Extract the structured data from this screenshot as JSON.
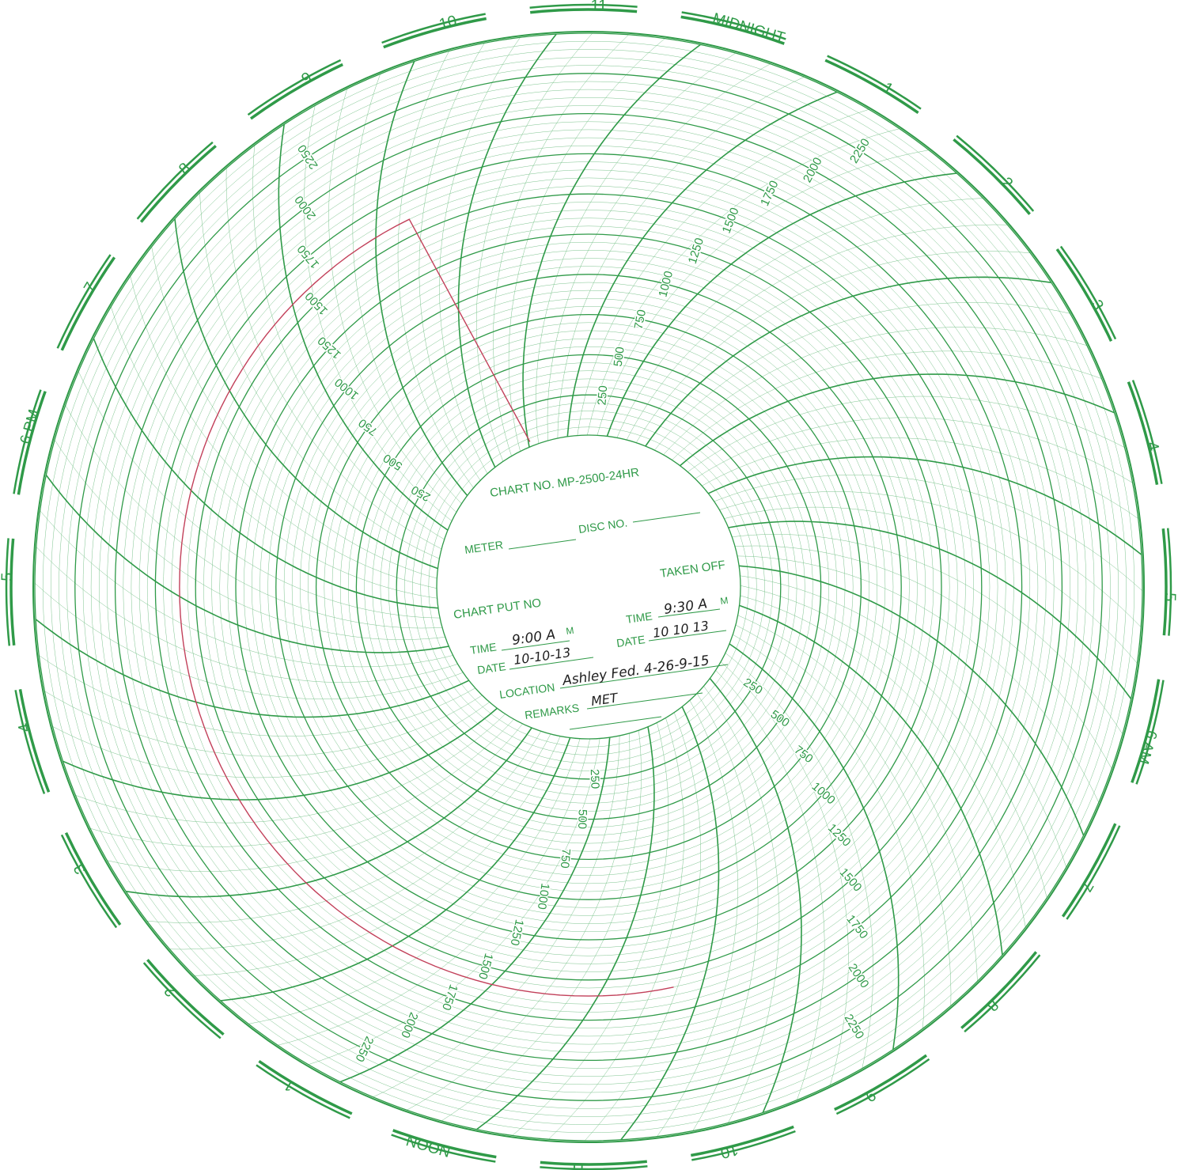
{
  "chart_data": {
    "type": "circular-recorder",
    "chart_no": "CHART NO. MP-2500-24HR",
    "colors": {
      "grid": "#2f9a48",
      "grid_light": "#7cc48d",
      "trace": "#c2405a",
      "ink": "#1f1f1f"
    },
    "hour_labels": [
      "MIDNIGHT",
      "1",
      "2",
      "3",
      "4",
      "5",
      "6 AM",
      "7",
      "8",
      "9",
      "10",
      "11",
      "NOON",
      "1",
      "2",
      "3",
      "4",
      "5",
      "6 PM",
      "7",
      "8",
      "9",
      "10",
      "11"
    ],
    "scale_labels": [
      "250",
      "500",
      "750",
      "1000",
      "1250",
      "1500",
      "1750",
      "2000",
      "2250"
    ],
    "scale_range": [
      0,
      2500
    ],
    "grid": {
      "major_step": 250,
      "minor_step": 50,
      "hours": 24,
      "minor_time_per_hour": 4
    },
    "trace": {
      "series_value": 1600,
      "note": ""
    },
    "form": {
      "meter_label": "METER",
      "disc_label": "DISC NO.",
      "taken_off_label": "TAKEN OFF",
      "put_on_label": "CHART PUT NO",
      "time_label": "TIME",
      "date_label": "DATE",
      "location_label": "LOCATION",
      "remarks_label": "REMARKS",
      "am_suffix": "M",
      "put_on_time": "9:00 A",
      "put_on_date": "10-10-13",
      "taken_off_time": "9:30 A",
      "taken_off_date": "10 10 13",
      "location": "Ashley Fed. 4-26-9-15",
      "remarks": "MET"
    }
  }
}
